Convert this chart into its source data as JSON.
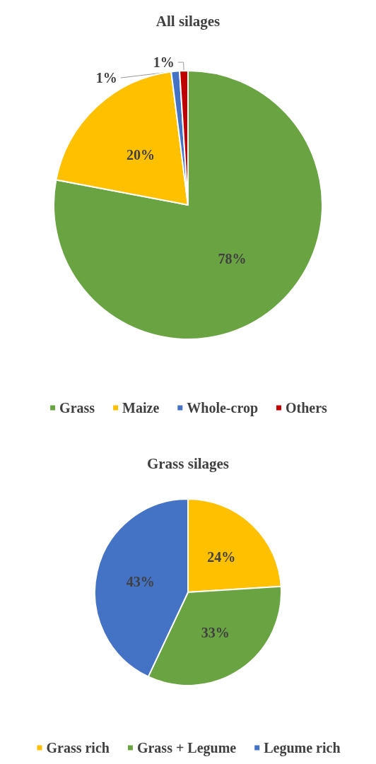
{
  "chart_data": [
    {
      "type": "pie",
      "title": "All silages",
      "categories": [
        "Grass",
        "Maize",
        "Whole-crop",
        "Others"
      ],
      "values": [
        78,
        20,
        1,
        1
      ],
      "colors": [
        "#6aa342",
        "#ffc000",
        "#4472c4",
        "#c00000"
      ],
      "value_labels": [
        "78%",
        "20%",
        "1%",
        "1%"
      ],
      "legend": "bottom"
    },
    {
      "type": "pie",
      "title": "Grass silages",
      "categories": [
        "Grass rich",
        "Grass + Legume",
        "Legume rich"
      ],
      "values": [
        24,
        33,
        43
      ],
      "colors": [
        "#ffc000",
        "#6aa342",
        "#4472c4"
      ],
      "value_labels": [
        "24%",
        "33%",
        "43%"
      ],
      "legend": "bottom"
    }
  ]
}
